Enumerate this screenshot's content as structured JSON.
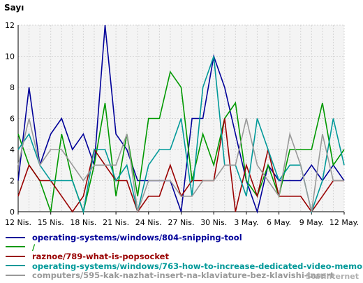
{
  "watermark": "Statinternet",
  "chart_data": {
    "type": "line",
    "ylabel": "Sayı",
    "ylim": [
      0,
      12
    ],
    "yticks": [
      0,
      2,
      4,
      6,
      8,
      10,
      12
    ],
    "xticks": [
      "12 Nis.",
      "15 Nis.",
      "18 Nis.",
      "21 Nis.",
      "24 Nis.",
      "27 Nis.",
      "30 Nis.",
      "3 May.",
      "6 May.",
      "9 May.",
      "12 May."
    ],
    "grid": true,
    "legend_position": "bottom",
    "x_count": 31,
    "series": [
      {
        "name": "operating-systems/windows/804-snipping-tool",
        "color": "#000099",
        "values": [
          2,
          8,
          3,
          5,
          6,
          4,
          5,
          3,
          12,
          5,
          4,
          2,
          2,
          2,
          2,
          0,
          6,
          6,
          10,
          8,
          5,
          2,
          0,
          3,
          2,
          2,
          2,
          3,
          2,
          3,
          2
        ]
      },
      {
        "name": "/",
        "color": "#009900",
        "values": [
          5,
          3,
          2,
          0,
          5,
          2,
          0,
          3,
          7,
          1,
          5,
          1,
          6,
          6,
          9,
          8,
          2,
          5,
          3,
          6,
          7,
          2,
          1,
          3,
          1,
          4,
          4,
          4,
          7,
          3,
          4
        ]
      },
      {
        "name": "raznoe/789-what-is-popsocket",
        "color": "#990000",
        "values": [
          1,
          3,
          2,
          2,
          1,
          0,
          1,
          4,
          3,
          2,
          2,
          0,
          1,
          1,
          3,
          1,
          2,
          2,
          2,
          6,
          0,
          3,
          1,
          4,
          1,
          1,
          1,
          0,
          1,
          2,
          2
        ]
      },
      {
        "name": "operating-systems/windows/763-how-to-increase-dedicated-video-memory",
        "color": "#009999",
        "values": [
          4,
          5,
          3,
          2,
          2,
          2,
          0,
          4,
          4,
          2,
          3,
          0,
          3,
          4,
          4,
          6,
          1,
          8,
          10,
          3,
          3,
          1,
          6,
          4,
          2,
          3,
          3,
          0,
          2,
          6,
          3
        ]
      },
      {
        "name": "computers/595-kak-nazhat-insert-na-klaviature-bez-klavishi-insert",
        "color": "#999999",
        "values": [
          3,
          6,
          3,
          4,
          4,
          3,
          2,
          3,
          3,
          3,
          5,
          0,
          2,
          2,
          2,
          1,
          1,
          2,
          2,
          3,
          3,
          6,
          3,
          2,
          1,
          5,
          3,
          0,
          5,
          2,
          2
        ]
      }
    ]
  }
}
